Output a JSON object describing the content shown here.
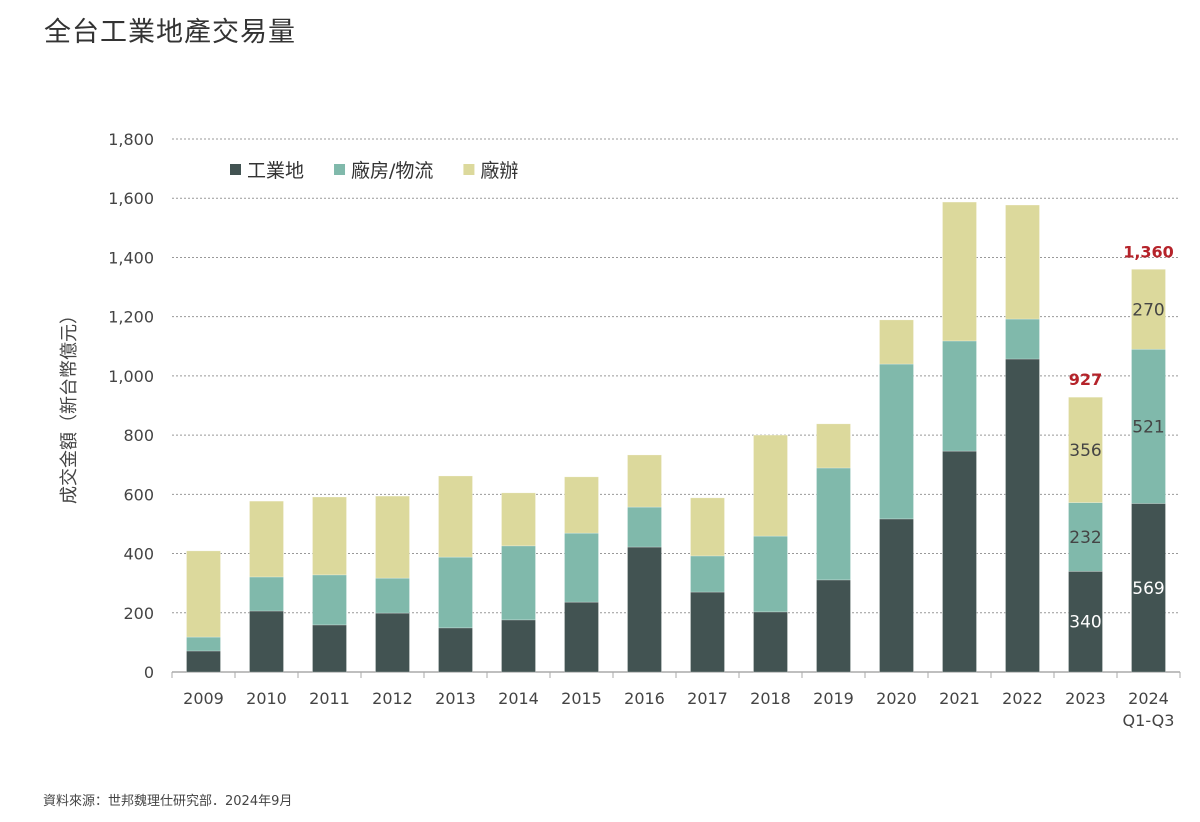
{
  "title": "全台工業地產交易量",
  "source": "資料來源：世邦魏理仕研究部．2024年9月",
  "chart_data": {
    "type": "bar",
    "stacked": true,
    "title": "全台工業地產交易量",
    "ylabel": "成交金額（新台幣億元）",
    "xlabel": "",
    "ylim": [
      0,
      1800
    ],
    "yticks": [
      "0",
      "200",
      "400",
      "600",
      "800",
      "1,000",
      "1,200",
      "1,400",
      "1,600",
      "1,800"
    ],
    "grid": true,
    "legend": "top-left",
    "categories": [
      "2009",
      "2010",
      "2011",
      "2012",
      "2013",
      "2014",
      "2015",
      "2016",
      "2017",
      "2018",
      "2019",
      "2020",
      "2021",
      "2022",
      "2023",
      "2024"
    ],
    "category_sublabels": {
      "2024": "Q1-Q3"
    },
    "series": [
      {
        "name": "工業地",
        "color": "#425352",
        "values": [
          71,
          206,
          159,
          199,
          149,
          176,
          236,
          422,
          270,
          203,
          311,
          517,
          746,
          1057,
          340,
          569
        ]
      },
      {
        "name": "廠房/物流",
        "color": "#80b9ab",
        "values": [
          47,
          115,
          169,
          118,
          239,
          250,
          233,
          135,
          122,
          256,
          378,
          523,
          372,
          135,
          232,
          521
        ]
      },
      {
        "name": "廠辦",
        "color": "#dcd99c",
        "values": [
          291,
          256,
          263,
          277,
          274,
          179,
          190,
          176,
          196,
          341,
          149,
          149,
          469,
          385,
          356,
          270
        ]
      }
    ],
    "data_labels": {
      "2023": {
        "segments": [
          "340",
          "232",
          "356"
        ],
        "total": "927"
      },
      "2024": {
        "segments": [
          "569",
          "521",
          "270"
        ],
        "total": "1,360"
      }
    },
    "total_label_color": "#b5232a"
  }
}
